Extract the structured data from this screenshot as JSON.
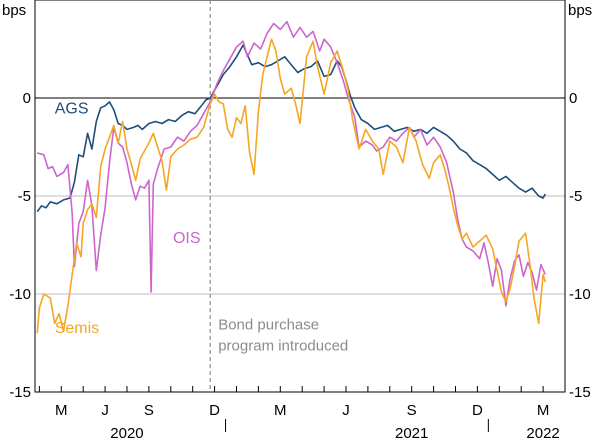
{
  "chart_data": {
    "type": "line",
    "yunit_left": "bps",
    "yunit_right": "bps",
    "ylim": [
      -15,
      5
    ],
    "yticks": [
      {
        "value": 0,
        "label": "0"
      },
      {
        "value": -5,
        "label": "-5"
      },
      {
        "value": -10,
        "label": "-10"
      },
      {
        "value": -15,
        "label": "-15"
      }
    ],
    "month_ticks": [
      {
        "label": "M",
        "month": 5
      },
      {
        "label": "J",
        "month": 7
      },
      {
        "label": "S",
        "month": 9
      },
      {
        "label": "D",
        "month": 12
      },
      {
        "label": "M",
        "month": 15
      },
      {
        "label": "J",
        "month": 18
      },
      {
        "label": "S",
        "month": 21
      },
      {
        "label": "D",
        "month": 24
      },
      {
        "label": "M",
        "month": 27
      }
    ],
    "year_labels": [
      {
        "label": "2020",
        "month": 8
      },
      {
        "label": "2021",
        "month": 21
      },
      {
        "label": "2022",
        "month": 27
      }
    ],
    "xrange_months": [
      3.8,
      28.0
    ],
    "zero_line": 0,
    "vline": {
      "month": 11.8,
      "label_line1": "Bond purchase",
      "label_line2": "program introduced",
      "color": "#8c8c8c"
    },
    "series": [
      {
        "name": "AGS",
        "color": "#1f4e79",
        "points": [
          [
            3.9,
            -5.8
          ],
          [
            4.1,
            -5.5
          ],
          [
            4.3,
            -5.6
          ],
          [
            4.5,
            -5.3
          ],
          [
            4.8,
            -5.4
          ],
          [
            5.1,
            -5.2
          ],
          [
            5.4,
            -5.1
          ],
          [
            5.6,
            -4.3
          ],
          [
            5.8,
            -2.9
          ],
          [
            6.0,
            -3.0
          ],
          [
            6.2,
            -1.8
          ],
          [
            6.4,
            -2.6
          ],
          [
            6.6,
            -1.2
          ],
          [
            6.8,
            -0.5
          ],
          [
            7.0,
            -0.4
          ],
          [
            7.2,
            -0.2
          ],
          [
            7.4,
            -0.6
          ],
          [
            7.6,
            -1.3
          ],
          [
            7.8,
            -1.4
          ],
          [
            8.0,
            -1.6
          ],
          [
            8.3,
            -1.5
          ],
          [
            8.5,
            -1.4
          ],
          [
            8.7,
            -1.6
          ],
          [
            9.0,
            -1.3
          ],
          [
            9.3,
            -1.2
          ],
          [
            9.6,
            -1.3
          ],
          [
            9.9,
            -1.1
          ],
          [
            10.2,
            -1.2
          ],
          [
            10.5,
            -0.9
          ],
          [
            10.8,
            -0.7
          ],
          [
            11.1,
            -0.8
          ],
          [
            11.4,
            -0.4
          ],
          [
            11.6,
            -0.1
          ],
          [
            11.8,
            0.0
          ],
          [
            12.0,
            0.4
          ],
          [
            12.2,
            0.8
          ],
          [
            12.4,
            1.2
          ],
          [
            12.7,
            1.6
          ],
          [
            13.0,
            2.1
          ],
          [
            13.3,
            2.7
          ],
          [
            13.5,
            2.2
          ],
          [
            13.7,
            1.7
          ],
          [
            14.0,
            1.8
          ],
          [
            14.3,
            1.6
          ],
          [
            14.6,
            1.7
          ],
          [
            14.9,
            1.9
          ],
          [
            15.2,
            2.1
          ],
          [
            15.5,
            1.7
          ],
          [
            15.8,
            1.3
          ],
          [
            16.1,
            1.5
          ],
          [
            16.4,
            1.6
          ],
          [
            16.7,
            1.9
          ],
          [
            17.0,
            1.1
          ],
          [
            17.3,
            1.2
          ],
          [
            17.6,
            1.9
          ],
          [
            17.8,
            1.6
          ],
          [
            18.0,
            0.9
          ],
          [
            18.2,
            0.1
          ],
          [
            18.4,
            -0.5
          ],
          [
            18.7,
            -1.1
          ],
          [
            19.0,
            -1.3
          ],
          [
            19.3,
            -1.6
          ],
          [
            19.6,
            -1.5
          ],
          [
            19.9,
            -1.4
          ],
          [
            20.2,
            -1.7
          ],
          [
            20.5,
            -1.6
          ],
          [
            20.8,
            -1.5
          ],
          [
            21.1,
            -1.7
          ],
          [
            21.4,
            -1.6
          ],
          [
            21.7,
            -1.8
          ],
          [
            22.0,
            -1.5
          ],
          [
            22.3,
            -1.7
          ],
          [
            22.6,
            -1.9
          ],
          [
            22.9,
            -2.2
          ],
          [
            23.2,
            -2.6
          ],
          [
            23.5,
            -2.8
          ],
          [
            23.8,
            -3.2
          ],
          [
            24.1,
            -3.4
          ],
          [
            24.4,
            -3.6
          ],
          [
            24.7,
            -3.9
          ],
          [
            25.0,
            -4.2
          ],
          [
            25.3,
            -4.0
          ],
          [
            25.6,
            -4.3
          ],
          [
            25.9,
            -4.6
          ],
          [
            26.2,
            -4.8
          ],
          [
            26.5,
            -4.6
          ],
          [
            26.8,
            -5.0
          ],
          [
            27.0,
            -5.1
          ],
          [
            27.1,
            -4.9
          ]
        ]
      },
      {
        "name": "OIS",
        "color": "#cc66cc",
        "points": [
          [
            3.9,
            -2.8
          ],
          [
            4.2,
            -2.9
          ],
          [
            4.4,
            -3.6
          ],
          [
            4.6,
            -3.5
          ],
          [
            4.8,
            -4.0
          ],
          [
            5.1,
            -3.8
          ],
          [
            5.3,
            -3.4
          ],
          [
            5.5,
            -5.9
          ],
          [
            5.6,
            -8.6
          ],
          [
            5.8,
            -6.4
          ],
          [
            6.0,
            -5.8
          ],
          [
            6.2,
            -4.2
          ],
          [
            6.4,
            -5.5
          ],
          [
            6.6,
            -8.8
          ],
          [
            6.8,
            -7.0
          ],
          [
            7.0,
            -5.6
          ],
          [
            7.2,
            -3.3
          ],
          [
            7.4,
            -1.5
          ],
          [
            7.6,
            -2.3
          ],
          [
            7.8,
            -2.5
          ],
          [
            8.0,
            -3.3
          ],
          [
            8.2,
            -4.4
          ],
          [
            8.4,
            -5.2
          ],
          [
            8.6,
            -4.5
          ],
          [
            8.8,
            -4.6
          ],
          [
            9.0,
            -4.2
          ],
          [
            9.1,
            -9.9
          ],
          [
            9.2,
            -4.4
          ],
          [
            9.4,
            -3.6
          ],
          [
            9.7,
            -2.6
          ],
          [
            10.0,
            -2.5
          ],
          [
            10.3,
            -2.0
          ],
          [
            10.6,
            -2.2
          ],
          [
            10.9,
            -1.7
          ],
          [
            11.2,
            -1.4
          ],
          [
            11.5,
            -0.8
          ],
          [
            11.8,
            -0.2
          ],
          [
            12.1,
            0.7
          ],
          [
            12.4,
            1.4
          ],
          [
            12.7,
            2.0
          ],
          [
            13.0,
            2.6
          ],
          [
            13.3,
            2.9
          ],
          [
            13.5,
            2.1
          ],
          [
            13.8,
            2.8
          ],
          [
            14.1,
            2.5
          ],
          [
            14.4,
            3.3
          ],
          [
            14.7,
            3.8
          ],
          [
            15.0,
            3.5
          ],
          [
            15.3,
            3.9
          ],
          [
            15.6,
            3.1
          ],
          [
            15.9,
            3.6
          ],
          [
            16.2,
            3.1
          ],
          [
            16.5,
            3.4
          ],
          [
            16.8,
            2.4
          ],
          [
            17.0,
            3.0
          ],
          [
            17.3,
            2.6
          ],
          [
            17.6,
            1.8
          ],
          [
            17.9,
            0.8
          ],
          [
            18.1,
            0.0
          ],
          [
            18.4,
            -1.0
          ],
          [
            18.6,
            -2.5
          ],
          [
            18.9,
            -2.2
          ],
          [
            19.2,
            -2.4
          ],
          [
            19.4,
            -2.7
          ],
          [
            19.7,
            -2.5
          ],
          [
            20.0,
            -2.0
          ],
          [
            20.3,
            -2.2
          ],
          [
            20.6,
            -1.8
          ],
          [
            20.9,
            -1.5
          ],
          [
            21.1,
            -2.0
          ],
          [
            21.4,
            -1.6
          ],
          [
            21.7,
            -2.4
          ],
          [
            22.0,
            -2.0
          ],
          [
            22.3,
            -2.5
          ],
          [
            22.6,
            -3.3
          ],
          [
            22.9,
            -4.8
          ],
          [
            23.1,
            -6.2
          ],
          [
            23.3,
            -7.2
          ],
          [
            23.5,
            -7.6
          ],
          [
            23.8,
            -7.8
          ],
          [
            24.1,
            -8.2
          ],
          [
            24.3,
            -7.4
          ],
          [
            24.5,
            -8.4
          ],
          [
            24.7,
            -9.6
          ],
          [
            24.9,
            -8.2
          ],
          [
            25.1,
            -8.8
          ],
          [
            25.3,
            -10.6
          ],
          [
            25.5,
            -9.2
          ],
          [
            25.7,
            -8.3
          ],
          [
            25.9,
            -8.0
          ],
          [
            26.1,
            -9.1
          ],
          [
            26.3,
            -8.4
          ],
          [
            26.5,
            -8.9
          ],
          [
            26.7,
            -9.8
          ],
          [
            26.9,
            -8.5
          ],
          [
            27.1,
            -9.0
          ]
        ]
      },
      {
        "name": "Semis",
        "color": "#f5a623",
        "points": [
          [
            3.9,
            -12.0
          ],
          [
            4.0,
            -10.7
          ],
          [
            4.2,
            -10.0
          ],
          [
            4.5,
            -10.2
          ],
          [
            4.7,
            -11.5
          ],
          [
            4.9,
            -11.0
          ],
          [
            5.1,
            -11.9
          ],
          [
            5.3,
            -10.6
          ],
          [
            5.5,
            -9.0
          ],
          [
            5.7,
            -7.4
          ],
          [
            5.9,
            -8.1
          ],
          [
            6.0,
            -6.4
          ],
          [
            6.2,
            -5.7
          ],
          [
            6.4,
            -5.4
          ],
          [
            6.6,
            -6.1
          ],
          [
            6.8,
            -3.5
          ],
          [
            7.0,
            -2.6
          ],
          [
            7.2,
            -2.0
          ],
          [
            7.4,
            -1.4
          ],
          [
            7.6,
            -2.3
          ],
          [
            7.8,
            -1.2
          ],
          [
            8.0,
            -2.6
          ],
          [
            8.2,
            -3.4
          ],
          [
            8.4,
            -4.2
          ],
          [
            8.6,
            -3.1
          ],
          [
            8.8,
            -2.7
          ],
          [
            9.0,
            -2.3
          ],
          [
            9.2,
            -1.8
          ],
          [
            9.4,
            -2.5
          ],
          [
            9.6,
            -3.2
          ],
          [
            9.8,
            -4.7
          ],
          [
            10.0,
            -3.0
          ],
          [
            10.3,
            -2.6
          ],
          [
            10.6,
            -2.4
          ],
          [
            10.9,
            -2.1
          ],
          [
            11.2,
            -2.0
          ],
          [
            11.5,
            -1.5
          ],
          [
            11.8,
            -0.3
          ],
          [
            12.0,
            0.2
          ],
          [
            12.2,
            -0.2
          ],
          [
            12.4,
            -0.3
          ],
          [
            12.6,
            -1.6
          ],
          [
            12.8,
            -2.0
          ],
          [
            13.0,
            -1.0
          ],
          [
            13.2,
            -1.3
          ],
          [
            13.4,
            -0.4
          ],
          [
            13.6,
            -2.8
          ],
          [
            13.8,
            -3.9
          ],
          [
            14.0,
            -0.7
          ],
          [
            14.2,
            1.2
          ],
          [
            14.4,
            2.1
          ],
          [
            14.6,
            3.0
          ],
          [
            14.8,
            2.4
          ],
          [
            15.0,
            1.0
          ],
          [
            15.2,
            0.2
          ],
          [
            15.5,
            0.5
          ],
          [
            15.7,
            -0.3
          ],
          [
            15.9,
            -1.3
          ],
          [
            16.2,
            2.1
          ],
          [
            16.5,
            2.9
          ],
          [
            16.7,
            1.6
          ],
          [
            17.0,
            0.2
          ],
          [
            17.3,
            1.8
          ],
          [
            17.6,
            2.4
          ],
          [
            17.9,
            1.3
          ],
          [
            18.1,
            0.4
          ],
          [
            18.3,
            -1.1
          ],
          [
            18.6,
            -2.6
          ],
          [
            18.9,
            -1.6
          ],
          [
            19.2,
            -2.2
          ],
          [
            19.5,
            -2.6
          ],
          [
            19.7,
            -3.9
          ],
          [
            20.0,
            -2.2
          ],
          [
            20.3,
            -2.5
          ],
          [
            20.6,
            -3.3
          ],
          [
            20.9,
            -1.5
          ],
          [
            21.2,
            -2.2
          ],
          [
            21.5,
            -3.4
          ],
          [
            21.8,
            -4.1
          ],
          [
            22.0,
            -3.3
          ],
          [
            22.3,
            -2.9
          ],
          [
            22.5,
            -3.6
          ],
          [
            22.7,
            -4.5
          ],
          [
            22.9,
            -5.6
          ],
          [
            23.1,
            -6.5
          ],
          [
            23.3,
            -7.2
          ],
          [
            23.5,
            -6.9
          ],
          [
            23.8,
            -7.6
          ],
          [
            24.1,
            -7.3
          ],
          [
            24.4,
            -7.0
          ],
          [
            24.7,
            -7.7
          ],
          [
            24.9,
            -8.8
          ],
          [
            25.1,
            -9.9
          ],
          [
            25.3,
            -10.4
          ],
          [
            25.5,
            -9.7
          ],
          [
            25.7,
            -8.6
          ],
          [
            25.9,
            -7.3
          ],
          [
            26.2,
            -6.9
          ],
          [
            26.4,
            -8.5
          ],
          [
            26.6,
            -10.3
          ],
          [
            26.8,
            -11.5
          ],
          [
            27.0,
            -9.0
          ],
          [
            27.1,
            -9.4
          ]
        ]
      }
    ],
    "series_labels": [
      {
        "series": "AGS",
        "text": "AGS",
        "month": 4.7,
        "value": -0.8
      },
      {
        "series": "OIS",
        "text": "OIS",
        "month": 10.1,
        "value": -7.4
      },
      {
        "series": "Semis",
        "text": "Semis",
        "month": 4.7,
        "value": -12.0
      }
    ]
  }
}
